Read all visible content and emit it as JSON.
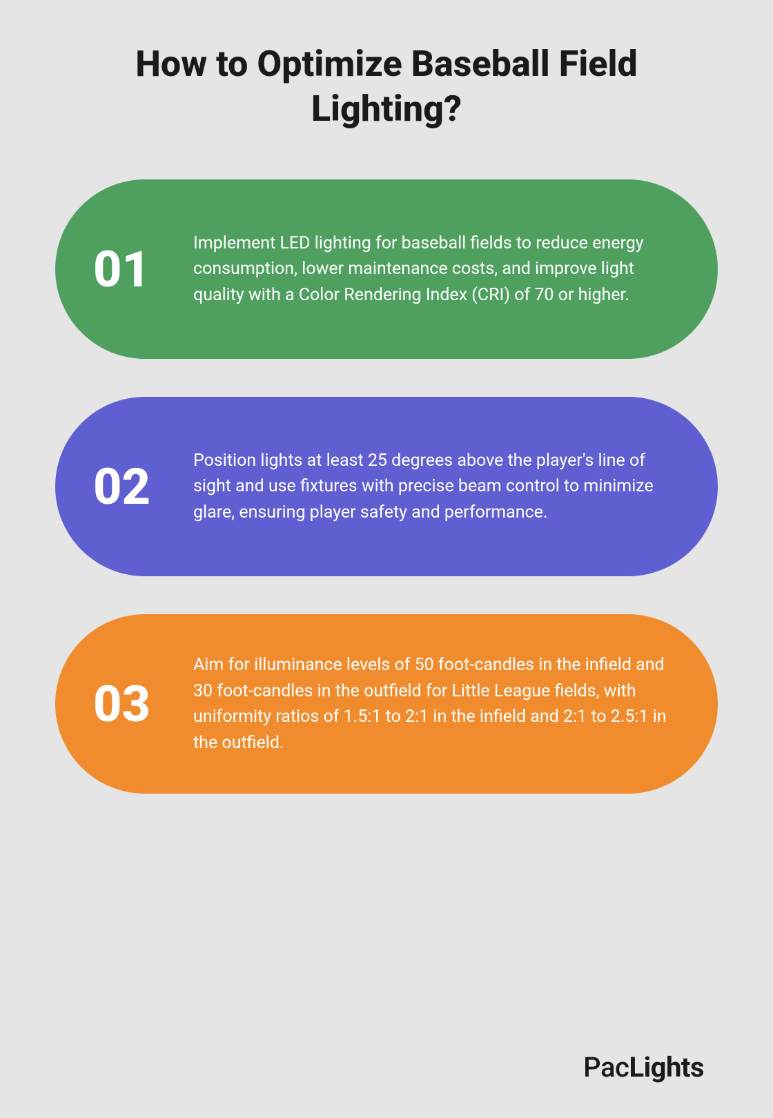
{
  "title": "How to Optimize Baseball Field Lighting?",
  "title_fontsize": 52,
  "title_color": "#1a1a1a",
  "background_color": "#e5e5e5",
  "number_fontsize": 72,
  "text_fontsize": 25,
  "text_color": "#ffffff",
  "card_border_radius": 150,
  "card_gap": 55,
  "cards": [
    {
      "number": "01",
      "text": "Implement LED lighting for baseball fields to reduce energy consumption, lower maintenance costs, and improve light quality with a Color Rendering Index (CRI) of 70 or higher.",
      "background_color": "#4fa05f"
    },
    {
      "number": "02",
      "text": "Position lights at least 25 degrees above the player's line of sight and use fixtures with precise beam control to minimize glare, ensuring player safety and performance.",
      "background_color": "#5f5fd1"
    },
    {
      "number": "03",
      "text": "Aim for illuminance levels of 50 foot-candles in the infield and 30 foot-candles in the outfield for Little League fields, with uniformity ratios of 1.5:1 to 2:1 in the infield and 2:1 to 2.5:1 in the outfield.",
      "background_color": "#f08c2e"
    }
  ],
  "brand_prefix": "Pac",
  "brand_suffix": "Lights",
  "brand_fontsize": 40,
  "brand_color": "#1a1a1a"
}
